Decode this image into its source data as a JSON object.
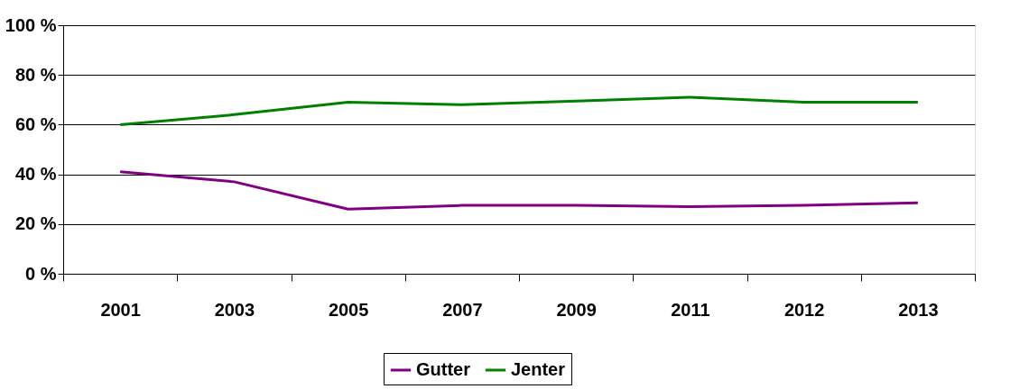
{
  "chart_data": {
    "type": "line",
    "categories": [
      "2001",
      "2003",
      "2005",
      "2007",
      "2009",
      "2011",
      "2012",
      "2013"
    ],
    "series": [
      {
        "name": "Gutter",
        "color": "#800080",
        "values": [
          41,
          37,
          26,
          27.5,
          27.5,
          27,
          27.5,
          28.5
        ]
      },
      {
        "name": "Jenter",
        "color": "#008000",
        "values": [
          60,
          64,
          69,
          68,
          69.5,
          71,
          69,
          69
        ]
      }
    ],
    "ylim": [
      0,
      100
    ],
    "yticks": [
      {
        "value": 0,
        "label": "0 %"
      },
      {
        "value": 20,
        "label": "20 %"
      },
      {
        "value": 40,
        "label": "40 %"
      },
      {
        "value": 60,
        "label": "60 %"
      },
      {
        "value": 80,
        "label": "80 %"
      },
      {
        "value": 100,
        "label": "100 %"
      }
    ],
    "grid": "y",
    "legend": "bottom",
    "marker": "none",
    "line_style": "solid"
  }
}
